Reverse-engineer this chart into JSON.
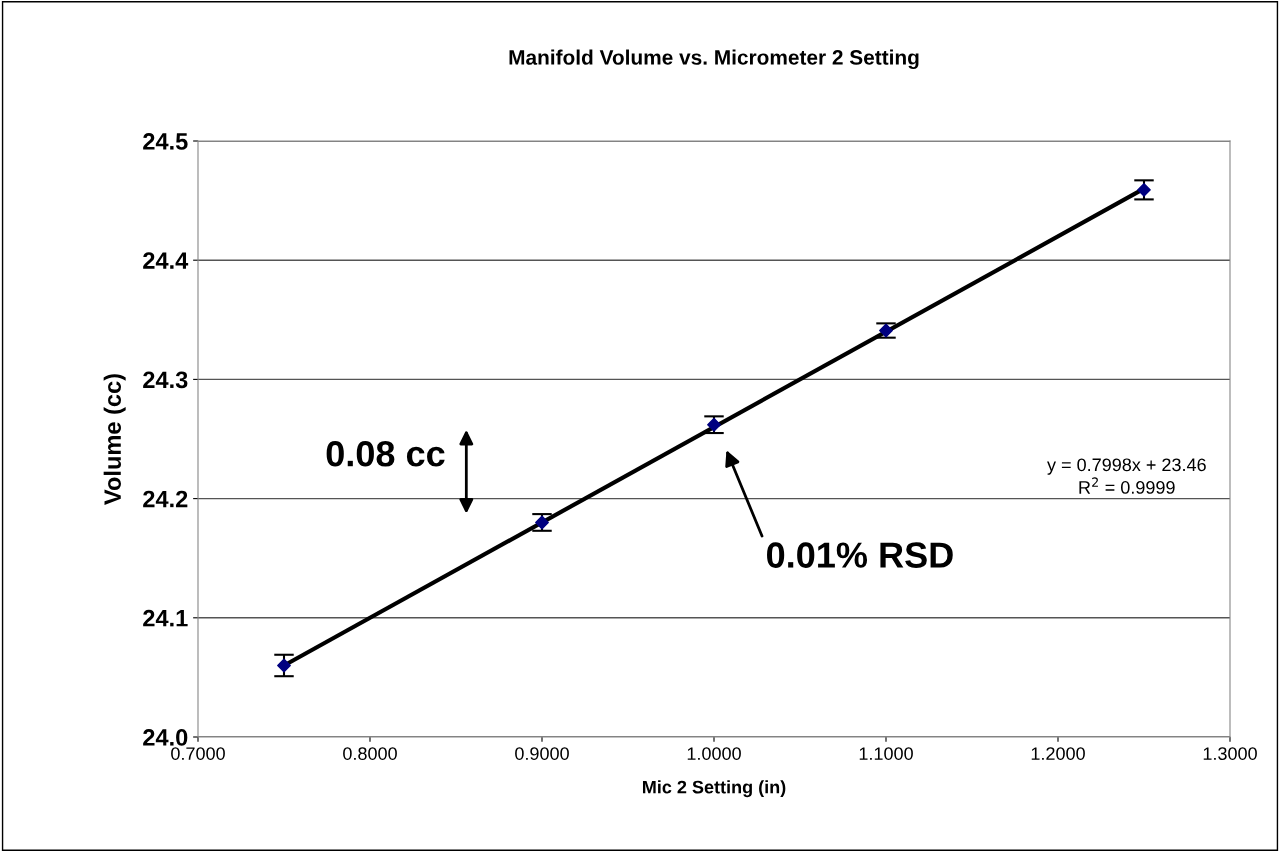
{
  "chart_data": {
    "type": "scatter",
    "title": "Manifold Volume vs. Micrometer 2 Setting",
    "xlabel": "Mic 2 Setting (in)",
    "ylabel": "Volume (cc)",
    "series": [
      {
        "color": "#000080",
        "x": [
          0.75,
          0.9,
          1.0,
          1.1,
          1.25
        ],
        "values": [
          24.06,
          24.18,
          24.262,
          24.341,
          24.459
        ],
        "errors": [
          0.009,
          0.007,
          0.007,
          0.006,
          0.008
        ],
        "marker": "diamond"
      },
      {
        "type": "line",
        "color": "#000000",
        "x": [
          0.75,
          1.25
        ],
        "values": [
          24.06,
          24.46
        ],
        "marker": "none",
        "line_style": "solid"
      }
    ],
    "xlim": [
      0.7,
      1.3
    ],
    "xticks": [
      {
        "value": 0.7,
        "label": "0.7000"
      },
      {
        "value": 0.8,
        "label": "0.8000"
      },
      {
        "value": 0.9,
        "label": "0.9000"
      },
      {
        "value": 1.0,
        "label": "1.0000"
      },
      {
        "value": 1.1,
        "label": "1.1000"
      },
      {
        "value": 1.2,
        "label": "1.2000"
      },
      {
        "value": 1.3,
        "label": "1.3000"
      }
    ],
    "ylim": [
      24.0,
      24.5
    ],
    "yticks": [
      {
        "value": 24.0,
        "label": "24.0"
      },
      {
        "value": 24.1,
        "label": "24.1"
      },
      {
        "value": 24.2,
        "label": "24.2"
      },
      {
        "value": 24.3,
        "label": "24.3"
      },
      {
        "value": 24.4,
        "label": "24.4"
      },
      {
        "value": 24.5,
        "label": "24.5"
      }
    ],
    "grid": "y",
    "legend": false,
    "annotations": [
      "0.08 cc",
      "0.01% RSD",
      "y = 0.7998x + 23.46",
      "R$^{2}$ = 0.9999"
    ]
  }
}
